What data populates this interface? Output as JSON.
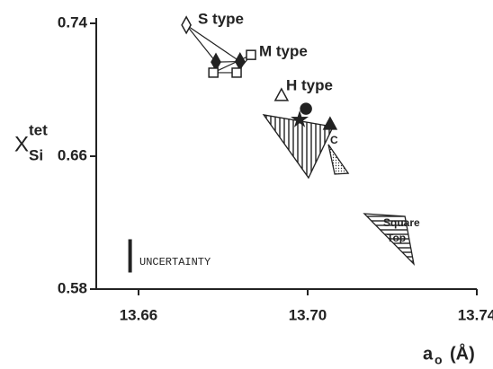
{
  "chart_data": {
    "type": "scatter",
    "xlabel": {
      "main": "a",
      "sub": "o",
      "unit": "(Å)"
    },
    "ylabel": {
      "main": "X",
      "sub": "Si",
      "sup": "tet"
    },
    "xlim": [
      13.65,
      13.74
    ],
    "ylim": [
      0.58,
      0.74
    ],
    "xticks": [
      13.66,
      {
        "value": 13.7,
        "label": "13.70"
      },
      13.74
    ],
    "yticks": [
      0.58,
      0.66,
      0.74
    ],
    "series": [
      {
        "name": "S type",
        "marker": "diamond",
        "x": [
          13.6713,
          13.6783,
          13.684
        ],
        "values": [
          0.739,
          0.7167,
          0.717
        ],
        "filled": [
          false,
          true,
          true
        ],
        "connect": true
      },
      {
        "name": "M type",
        "marker": "square",
        "x": [
          13.6777,
          13.6832,
          13.6866
        ],
        "values": [
          0.7103,
          0.7103,
          0.721
        ],
        "filled": [
          false,
          false,
          false
        ],
        "connect": true
      },
      {
        "name": "H type",
        "marker": "mixed",
        "x": [
          13.6938,
          13.6996,
          13.6981,
          13.7053
        ],
        "values": [
          0.6968,
          0.6886,
          0.682,
          0.6795
        ],
        "shapes": [
          "triangle",
          "circle",
          "star",
          "triangle"
        ],
        "filled": [
          false,
          true,
          true,
          true
        ],
        "connect": false
      }
    ],
    "regions": [
      {
        "pattern": "vertical-hatch",
        "x": [
          13.6896,
          13.706,
          13.7002
        ],
        "values": [
          0.6849,
          0.6778,
          0.647
        ]
      },
      {
        "name": "C",
        "pattern": "dots",
        "x": [
          13.7049,
          13.7096,
          13.7064
        ],
        "values": [
          0.667,
          0.6497,
          0.6492
        ]
      },
      {
        "name": "Square Top",
        "pattern": "horizontal-hatch",
        "x": [
          13.7134,
          13.723,
          13.7251
        ],
        "values": [
          0.6254,
          0.6238,
          0.5951
        ]
      }
    ],
    "uncertainty": {
      "label": "UNCERTAINTY",
      "x": 13.658,
      "range": [
        0.59,
        0.61
      ]
    }
  }
}
